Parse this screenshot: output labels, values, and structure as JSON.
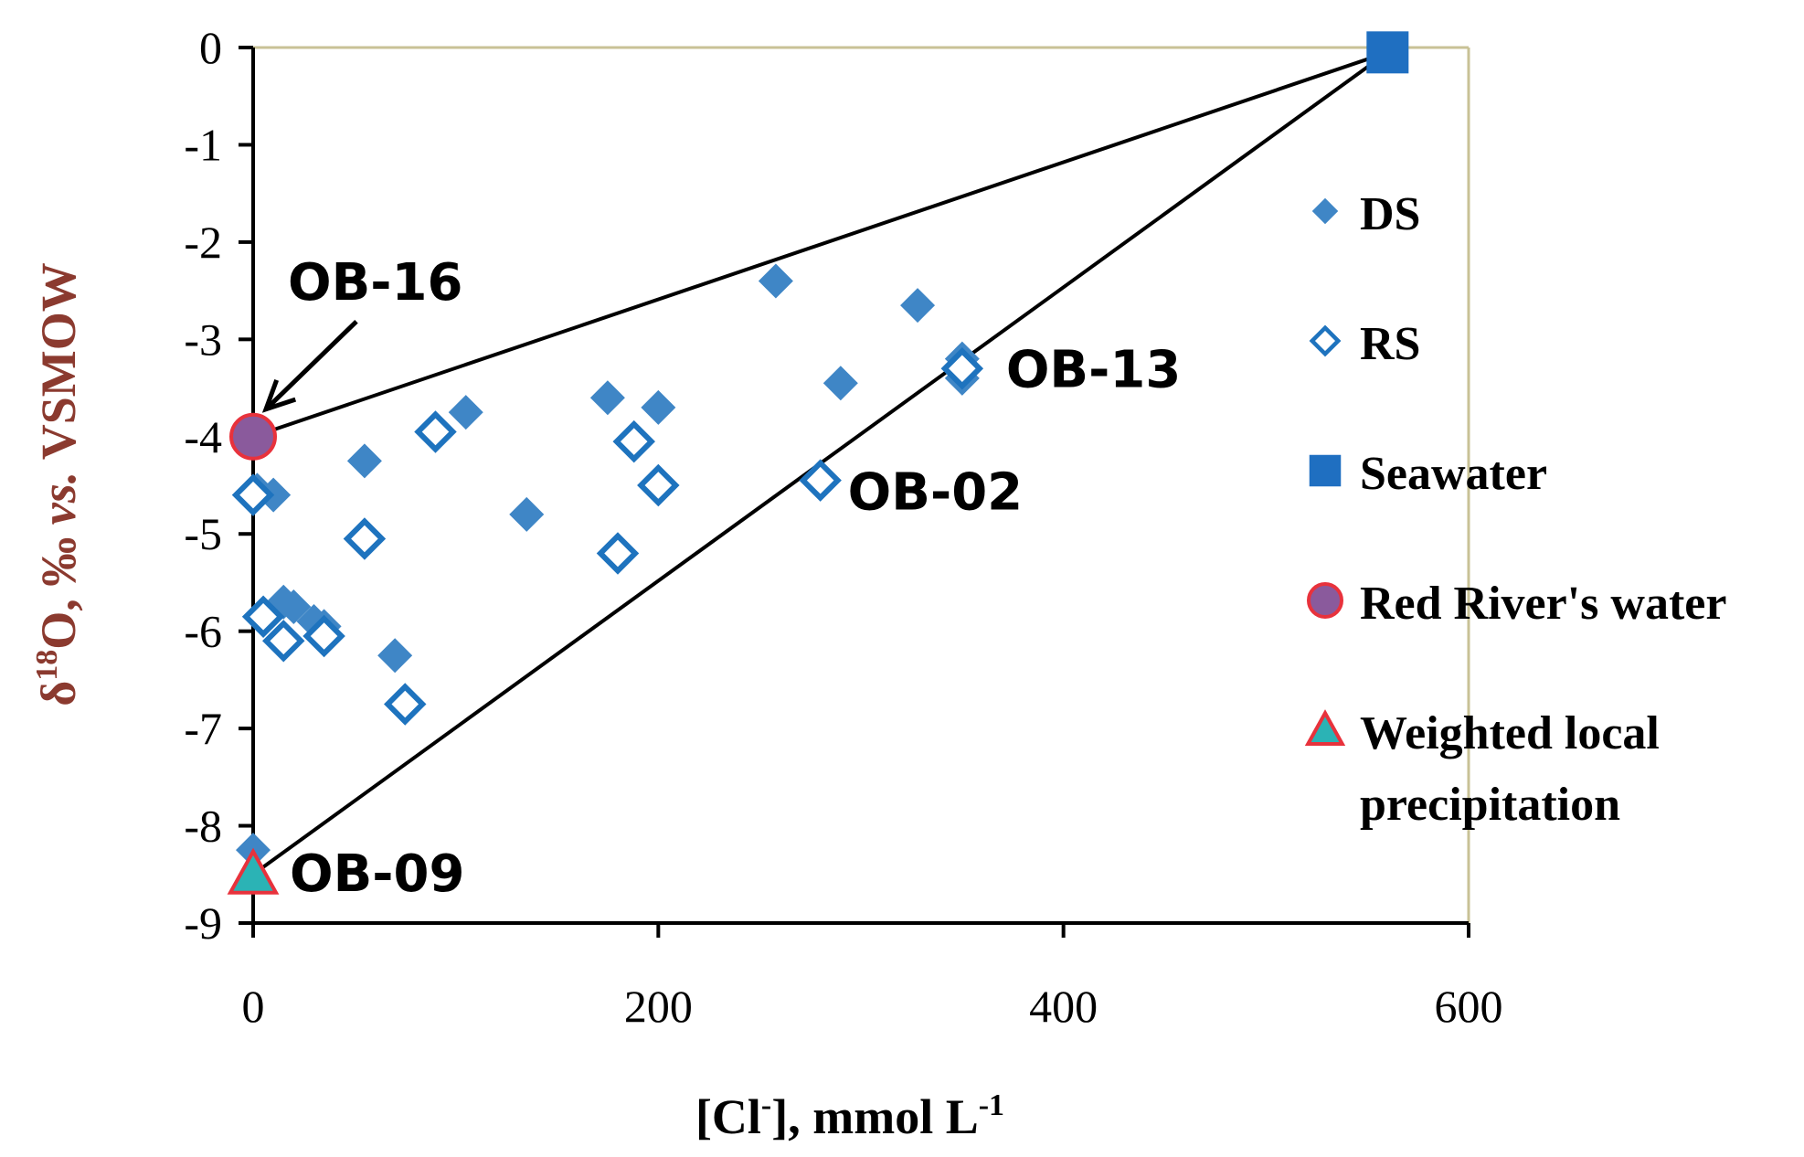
{
  "chart_data": {
    "type": "scatter",
    "xlabel": "[Cl⁻], mmol L⁻¹",
    "xlabel_parts": {
      "base": "[Cl",
      "sup1": "-",
      "mid": "], mmol L",
      "sup2": "-1"
    },
    "ylabel": "δ¹⁸O, ‰ vs. VSMOW",
    "ylabel_parts": {
      "delta": "δ",
      "sup": "18",
      "rest": "O, ‰ ",
      "vs": "vs.",
      "tail": " VSMOW"
    },
    "xlim": [
      0,
      600
    ],
    "ylim": [
      -9,
      0
    ],
    "xticks": [
      0,
      200,
      400,
      600
    ],
    "yticks": [
      0,
      -1,
      -2,
      -3,
      -4,
      -5,
      -6,
      -7,
      -8,
      -9
    ],
    "grid": false,
    "legend_position": "right",
    "colors": {
      "ds": "#3f86c6",
      "rs": "#1e73be",
      "seawater": "#1f6fc1",
      "river_fill": "#8a5a9c",
      "river_edge": "#e8323c",
      "precip_fill": "#2bb3b5",
      "precip_edge": "#e8323c",
      "lines": "#000000",
      "frame": "#c8c296",
      "axes": "#000000"
    },
    "series": [
      {
        "name": "DS",
        "marker": "filled-diamond",
        "points": [
          [
            2,
            -4.55
          ],
          [
            10,
            -4.6
          ],
          [
            15,
            -5.7
          ],
          [
            20,
            -5.75
          ],
          [
            30,
            -5.9
          ],
          [
            35,
            -5.95
          ],
          [
            55,
            -4.25
          ],
          [
            70,
            -6.25
          ],
          [
            105,
            -3.75
          ],
          [
            135,
            -4.8
          ],
          [
            175,
            -3.6
          ],
          [
            200,
            -3.7
          ],
          [
            258,
            -2.4
          ],
          [
            290,
            -3.45
          ],
          [
            328,
            -2.65
          ],
          [
            350,
            -3.2
          ],
          [
            350,
            -3.4
          ],
          [
            0,
            -8.25
          ]
        ]
      },
      {
        "name": "RS",
        "marker": "open-diamond",
        "points": [
          [
            0,
            -4.6
          ],
          [
            5,
            -5.85
          ],
          [
            15,
            -6.1
          ],
          [
            35,
            -6.05
          ],
          [
            55,
            -5.05
          ],
          [
            75,
            -6.75
          ],
          [
            90,
            -3.95
          ],
          [
            180,
            -5.2
          ],
          [
            188,
            -4.05
          ],
          [
            200,
            -4.5
          ],
          [
            280,
            -4.45
          ],
          [
            350,
            -3.3
          ]
        ]
      },
      {
        "name": "Seawater",
        "marker": "filled-square",
        "points": [
          [
            560,
            -0.05
          ]
        ]
      },
      {
        "name": "Red River's water",
        "marker": "circle",
        "points": [
          [
            0,
            -4.0
          ]
        ]
      },
      {
        "name": "Weighted local precipitation",
        "marker": "triangle",
        "points": [
          [
            0,
            -8.5
          ]
        ]
      }
    ],
    "lines": [
      {
        "from": [
          0,
          -4.0
        ],
        "to": [
          560,
          -0.05
        ]
      },
      {
        "from": [
          0,
          -8.5
        ],
        "to": [
          560,
          -0.05
        ]
      }
    ],
    "annotations": [
      {
        "text": "OB-16",
        "arrow_to": [
          0,
          -4.0
        ]
      },
      {
        "text": "OB-13",
        "near": [
          350,
          -3.3
        ]
      },
      {
        "text": "OB-02",
        "near": [
          280,
          -4.45
        ]
      },
      {
        "text": "OB-09",
        "near": [
          0,
          -8.5
        ]
      }
    ],
    "legend": [
      {
        "label": "DS",
        "marker": "filled-diamond"
      },
      {
        "label": "RS",
        "marker": "open-diamond"
      },
      {
        "label": "Seawater",
        "marker": "filled-square"
      },
      {
        "label": "Red River's water",
        "marker": "circle"
      },
      {
        "label_lines": [
          "Weighted local",
          "precipitation"
        ],
        "marker": "triangle"
      }
    ]
  }
}
